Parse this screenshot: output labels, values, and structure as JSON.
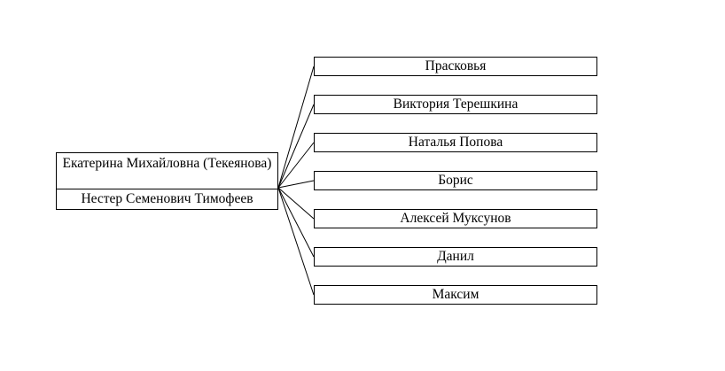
{
  "parents": {
    "mother": "Екатерина Михайловна (Текеянова)",
    "father": "Нестер Семенович Тимофеев"
  },
  "children": [
    "Прасковья",
    "Виктория Терешкина",
    "Наталья Попова",
    "Борис",
    "Алексей Муксунов",
    "Данил",
    "Максим"
  ]
}
